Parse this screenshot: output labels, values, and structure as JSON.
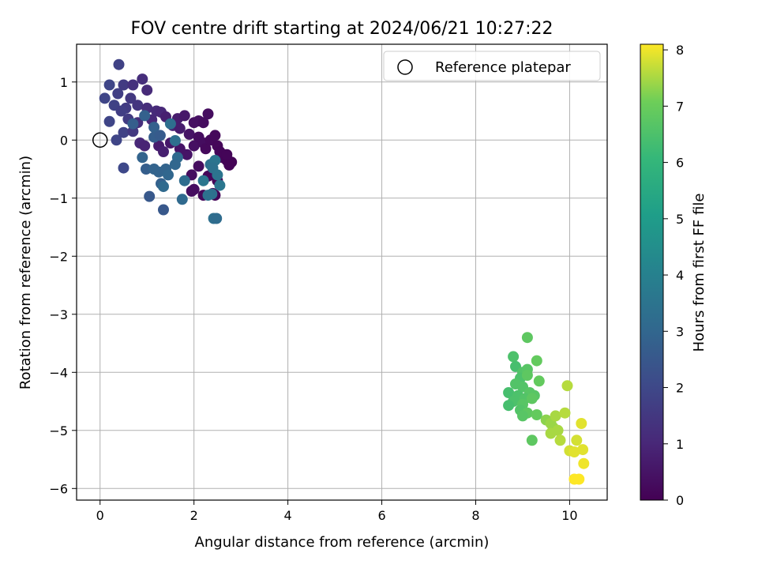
{
  "chart_data": {
    "type": "scatter",
    "title": "FOV centre drift starting at 2024/06/21 10:27:22",
    "xlabel": "Angular distance from reference (arcmin)",
    "ylabel": "Rotation from reference (arcmin)",
    "xlim": [
      -0.5,
      10.8
    ],
    "ylim": [
      -6.2,
      1.65
    ],
    "xticks": [
      0,
      2,
      4,
      6,
      8,
      10
    ],
    "yticks": [
      1,
      0,
      -1,
      -2,
      -3,
      -4,
      -5,
      -6
    ],
    "xtick_labels": [
      "0",
      "2",
      "4",
      "6",
      "8",
      "10"
    ],
    "ytick_labels": [
      "1",
      "0",
      "−1",
      "−2",
      "−3",
      "−4",
      "−5",
      "−6"
    ],
    "grid": true,
    "legend": {
      "placement": "top-right",
      "entries": [
        "Reference platepar"
      ]
    },
    "reference_point": {
      "x": 0,
      "y": 0,
      "label": "Reference platepar"
    },
    "colorbar": {
      "label": "Hours from first FF file",
      "range": [
        0,
        8.1
      ],
      "ticks": [
        0,
        1,
        2,
        3,
        4,
        5,
        6,
        7,
        8
      ],
      "tick_labels": [
        "0",
        "1",
        "2",
        "3",
        "4",
        "5",
        "6",
        "7",
        "8"
      ],
      "colormap": "viridis"
    },
    "points": [
      [
        0.4,
        1.3,
        1.8
      ],
      [
        0.2,
        0.95,
        1.9
      ],
      [
        0.1,
        0.72,
        1.9
      ],
      [
        0.3,
        0.6,
        1.8
      ],
      [
        0.38,
        0.8,
        1.7
      ],
      [
        0.5,
        0.95,
        1.6
      ],
      [
        0.7,
        0.95,
        1.3
      ],
      [
        0.9,
        1.05,
        1.2
      ],
      [
        1.0,
        0.86,
        1.1
      ],
      [
        0.65,
        0.72,
        1.5
      ],
      [
        0.55,
        0.55,
        1.6
      ],
      [
        0.8,
        0.6,
        1.4
      ],
      [
        0.45,
        0.5,
        1.7
      ],
      [
        0.2,
        0.32,
        1.9
      ],
      [
        0.35,
        0.0,
        1.9
      ],
      [
        0.5,
        0.13,
        1.8
      ],
      [
        0.5,
        -0.48,
        2.0
      ],
      [
        0.6,
        0.36,
        1.6
      ],
      [
        0.7,
        0.15,
        1.5
      ],
      [
        0.8,
        0.3,
        1.2
      ],
      [
        0.85,
        -0.05,
        1.0
      ],
      [
        0.95,
        -0.1,
        0.9
      ],
      [
        1.0,
        0.55,
        1.2
      ],
      [
        1.1,
        0.35,
        1.0
      ],
      [
        1.2,
        0.5,
        1.1
      ],
      [
        1.3,
        0.48,
        1.0
      ],
      [
        1.4,
        0.4,
        0.8
      ],
      [
        1.55,
        0.25,
        0.9
      ],
      [
        1.65,
        0.37,
        0.7
      ],
      [
        1.8,
        0.42,
        0.6
      ],
      [
        1.7,
        0.2,
        0.7
      ],
      [
        1.9,
        0.1,
        0.5
      ],
      [
        2.0,
        0.3,
        0.4
      ],
      [
        2.1,
        0.33,
        0.4
      ],
      [
        2.2,
        0.3,
        0.3
      ],
      [
        2.3,
        0.45,
        0.3
      ],
      [
        1.25,
        -0.1,
        0.7
      ],
      [
        1.35,
        -0.2,
        0.8
      ],
      [
        1.5,
        -0.05,
        0.6
      ],
      [
        1.7,
        -0.15,
        0.5
      ],
      [
        1.85,
        -0.25,
        0.5
      ],
      [
        2.0,
        -0.1,
        0.4
      ],
      [
        2.1,
        0.05,
        0.3
      ],
      [
        2.2,
        -0.05,
        0.3
      ],
      [
        2.25,
        -0.15,
        0.2
      ],
      [
        2.35,
        0.0,
        0.2
      ],
      [
        2.45,
        0.08,
        0.2
      ],
      [
        2.5,
        -0.1,
        0.15
      ],
      [
        2.55,
        -0.2,
        0.1
      ],
      [
        2.6,
        -0.3,
        0.1
      ],
      [
        2.7,
        -0.35,
        0.05
      ],
      [
        2.75,
        -0.43,
        0.05
      ],
      [
        2.8,
        -0.38,
        0.05
      ],
      [
        2.7,
        -0.25,
        0.1
      ],
      [
        2.4,
        -0.55,
        0.2
      ],
      [
        2.3,
        -0.62,
        0.15
      ],
      [
        2.5,
        -0.7,
        0.1
      ],
      [
        1.95,
        -0.6,
        0.3
      ],
      [
        2.0,
        -0.85,
        0.3
      ],
      [
        2.2,
        -0.95,
        0.2
      ],
      [
        2.4,
        -0.92,
        0.15
      ],
      [
        2.45,
        -0.95,
        0.1
      ],
      [
        1.95,
        -0.88,
        0.3
      ],
      [
        2.1,
        -0.45,
        0.3
      ],
      [
        1.15,
        0.22,
        2.8
      ],
      [
        0.95,
        0.42,
        2.8
      ],
      [
        0.7,
        0.28,
        2.7
      ],
      [
        1.5,
        0.28,
        3.3
      ],
      [
        1.6,
        -0.01,
        3.3
      ],
      [
        1.15,
        0.05,
        2.7
      ],
      [
        1.28,
        0.08,
        2.6
      ],
      [
        0.9,
        -0.3,
        2.9
      ],
      [
        0.98,
        -0.5,
        2.7
      ],
      [
        1.15,
        -0.5,
        2.9
      ],
      [
        1.25,
        -0.55,
        2.9
      ],
      [
        1.4,
        -0.5,
        2.9
      ],
      [
        1.45,
        -0.6,
        3.0
      ],
      [
        1.3,
        -0.75,
        2.8
      ],
      [
        1.35,
        -0.8,
        3.1
      ],
      [
        1.05,
        -0.97,
        2.5
      ],
      [
        1.35,
        -1.2,
        2.5
      ],
      [
        1.65,
        -0.3,
        3.1
      ],
      [
        1.6,
        -0.42,
        3.0
      ],
      [
        1.8,
        -0.7,
        3.2
      ],
      [
        1.75,
        -1.02,
        3.1
      ],
      [
        2.2,
        -0.7,
        3.6
      ],
      [
        2.35,
        -0.42,
        3.3
      ],
      [
        2.45,
        -0.35,
        3.5
      ],
      [
        2.4,
        -0.48,
        3.4
      ],
      [
        2.5,
        -0.6,
        3.5
      ],
      [
        2.55,
        -0.78,
        3.6
      ],
      [
        2.38,
        -0.93,
        3.3
      ],
      [
        2.42,
        -1.35,
        3.3
      ],
      [
        2.48,
        -1.35,
        3.2
      ],
      [
        2.3,
        -0.95,
        3.4
      ],
      [
        9.1,
        -3.4,
        6.8
      ],
      [
        8.8,
        -3.73,
        6.5
      ],
      [
        9.3,
        -3.8,
        6.9
      ],
      [
        8.85,
        -3.9,
        6.4
      ],
      [
        9.0,
        -4.0,
        6.6
      ],
      [
        9.1,
        -3.95,
        6.7
      ],
      [
        8.95,
        -4.1,
        6.5
      ],
      [
        9.1,
        -4.05,
        6.8
      ],
      [
        9.35,
        -4.15,
        6.9
      ],
      [
        8.85,
        -4.2,
        6.6
      ],
      [
        9.0,
        -4.25,
        6.6
      ],
      [
        8.7,
        -4.35,
        6.4
      ],
      [
        9.15,
        -4.35,
        6.7
      ],
      [
        9.25,
        -4.4,
        6.7
      ],
      [
        8.9,
        -4.4,
        6.5
      ],
      [
        9.05,
        -4.45,
        6.6
      ],
      [
        8.8,
        -4.5,
        6.5
      ],
      [
        9.0,
        -4.55,
        6.7
      ],
      [
        9.2,
        -4.45,
        6.8
      ],
      [
        8.7,
        -4.57,
        6.4
      ],
      [
        8.95,
        -4.65,
        6.6
      ],
      [
        9.1,
        -4.7,
        6.8
      ],
      [
        9.0,
        -4.75,
        6.7
      ],
      [
        9.3,
        -4.73,
        6.9
      ],
      [
        9.2,
        -5.17,
        6.8
      ],
      [
        9.5,
        -4.82,
        7.3
      ],
      [
        9.6,
        -4.88,
        7.4
      ],
      [
        9.7,
        -4.75,
        7.5
      ],
      [
        9.65,
        -4.95,
        7.4
      ],
      [
        9.75,
        -5.0,
        7.5
      ],
      [
        9.6,
        -5.05,
        7.5
      ],
      [
        9.8,
        -5.17,
        7.6
      ],
      [
        9.9,
        -4.7,
        7.6
      ],
      [
        9.95,
        -4.23,
        7.6
      ],
      [
        10.0,
        -5.35,
        7.8
      ],
      [
        10.1,
        -5.37,
        7.9
      ],
      [
        10.15,
        -5.17,
        7.8
      ],
      [
        10.25,
        -4.88,
        7.9
      ],
      [
        10.28,
        -5.33,
        7.9
      ],
      [
        10.3,
        -5.57,
        8.0
      ],
      [
        10.1,
        -5.84,
        8.1
      ],
      [
        10.2,
        -5.84,
        8.1
      ]
    ]
  }
}
